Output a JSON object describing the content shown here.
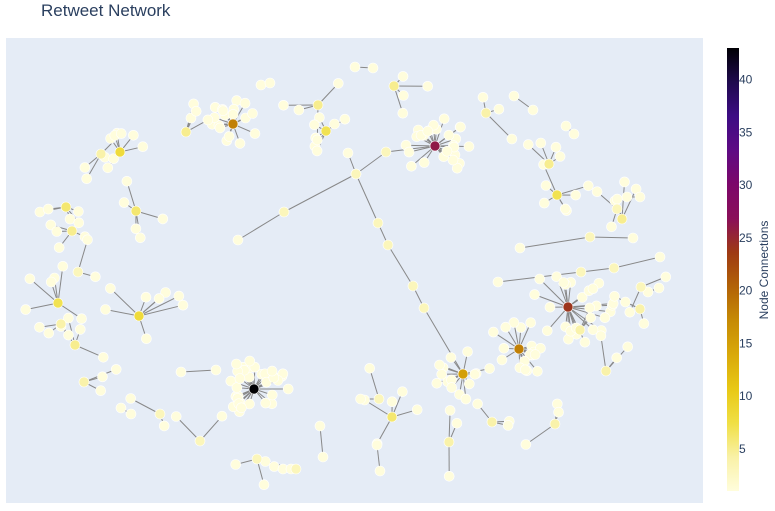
{
  "chart_data": {
    "type": "network",
    "title": "Retweet Network",
    "colorbar": {
      "title": "Node Connections",
      "min": 1,
      "max": 43,
      "ticks": [
        5,
        10,
        15,
        20,
        25,
        30,
        35,
        40
      ],
      "colorscale": [
        "#fffddc",
        "#f9f1a6",
        "#f0df44",
        "#e8c815",
        "#d9a90a",
        "#c68b05",
        "#b26207",
        "#9e3a14",
        "#8a0f59",
        "#7c076a",
        "#5e0a84",
        "#3d0c84",
        "#1f0a4e",
        "#000004"
      ]
    },
    "hubs": [
      {
        "id": "h1",
        "degree": 43
      },
      {
        "id": "h2",
        "degree": 26
      },
      {
        "id": "h3",
        "degree": 24
      },
      {
        "id": "h4",
        "degree": 18
      },
      {
        "id": "h5",
        "degree": 18
      },
      {
        "id": "h6",
        "degree": 15
      },
      {
        "id": "h7",
        "degree": 8
      },
      {
        "id": "h8",
        "degree": 8
      },
      {
        "id": "h9",
        "degree": 7
      },
      {
        "id": "h10",
        "degree": 7
      }
    ]
  }
}
